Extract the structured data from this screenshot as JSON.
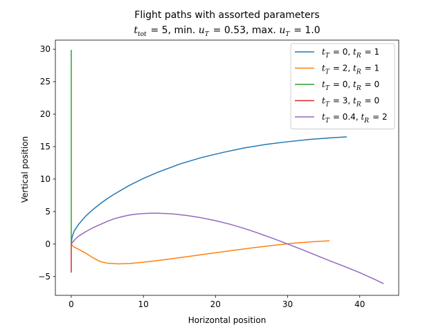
{
  "chart_data": {
    "type": "line",
    "title": "Flight paths with assorted parameters",
    "subtitle": "t_tot = 5, min. u_T = 0.53, max. u_T = 1.0",
    "xlabel": "Horizontal position",
    "ylabel": "Vertical position",
    "xlim": [
      -2.2,
      45.4
    ],
    "ylim": [
      -7.9,
      31.4
    ],
    "xticks": [
      0,
      10,
      20,
      30,
      40
    ],
    "yticks": [
      -5,
      0,
      5,
      10,
      15,
      20,
      25,
      30
    ],
    "grid": false,
    "legend_position": "top-right",
    "series": [
      {
        "name": "t_T = 0, t_R = 1",
        "color": "#1f77b4",
        "points": [
          [
            0,
            0
          ],
          [
            0.1,
            1
          ],
          [
            0.4,
            2
          ],
          [
            1,
            3
          ],
          [
            2,
            4.3
          ],
          [
            3,
            5.3
          ],
          [
            4,
            6.2
          ],
          [
            5,
            7
          ],
          [
            6,
            7.7
          ],
          [
            8,
            9
          ],
          [
            10,
            10.1
          ],
          [
            12,
            11.05
          ],
          [
            15,
            12.3
          ],
          [
            18,
            13.3
          ],
          [
            21,
            14.1
          ],
          [
            24,
            14.8
          ],
          [
            27,
            15.35
          ],
          [
            30,
            15.75
          ],
          [
            33,
            16.1
          ],
          [
            36,
            16.35
          ],
          [
            38.2,
            16.5
          ]
        ]
      },
      {
        "name": "t_T = 2, t_R = 1",
        "color": "#ff7f0e",
        "points": [
          [
            0,
            0
          ],
          [
            0.3,
            -0.4
          ],
          [
            1,
            -0.8
          ],
          [
            2,
            -1.4
          ],
          [
            3,
            -2.1
          ],
          [
            4,
            -2.7
          ],
          [
            5,
            -2.95
          ],
          [
            6.5,
            -3.05
          ],
          [
            8,
            -3
          ],
          [
            10,
            -2.8
          ],
          [
            13,
            -2.4
          ],
          [
            16,
            -1.95
          ],
          [
            19,
            -1.5
          ],
          [
            22,
            -1.05
          ],
          [
            25,
            -0.6
          ],
          [
            28,
            -0.2
          ],
          [
            31,
            0.15
          ],
          [
            34,
            0.4
          ],
          [
            35.8,
            0.5
          ]
        ]
      },
      {
        "name": "t_T = 0, t_R = 0",
        "color": "#2ca02c",
        "points": [
          [
            0,
            0
          ],
          [
            0,
            29.9
          ]
        ]
      },
      {
        "name": "t_T = 3, t_R = 0",
        "color": "#d62728",
        "points": [
          [
            0,
            0
          ],
          [
            0,
            -4.4
          ]
        ]
      },
      {
        "name": "t_T = 0.4, t_R = 2",
        "color": "#9467bd",
        "points": [
          [
            0,
            0
          ],
          [
            0.5,
            0.7
          ],
          [
            1,
            1.2
          ],
          [
            2,
            1.9
          ],
          [
            3,
            2.5
          ],
          [
            4,
            3
          ],
          [
            5,
            3.5
          ],
          [
            6,
            3.9
          ],
          [
            7,
            4.2
          ],
          [
            8,
            4.45
          ],
          [
            9,
            4.6
          ],
          [
            10,
            4.7
          ],
          [
            11,
            4.75
          ],
          [
            12,
            4.75
          ],
          [
            14,
            4.65
          ],
          [
            16,
            4.4
          ],
          [
            18,
            4.05
          ],
          [
            20,
            3.6
          ],
          [
            22,
            3.05
          ],
          [
            24,
            2.4
          ],
          [
            26,
            1.65
          ],
          [
            28,
            0.85
          ],
          [
            30,
            0
          ],
          [
            32,
            -0.85
          ],
          [
            34,
            -1.75
          ],
          [
            36,
            -2.65
          ],
          [
            38,
            -3.5
          ],
          [
            40,
            -4.4
          ],
          [
            42,
            -5.4
          ],
          [
            43.3,
            -6.1
          ]
        ]
      }
    ]
  }
}
